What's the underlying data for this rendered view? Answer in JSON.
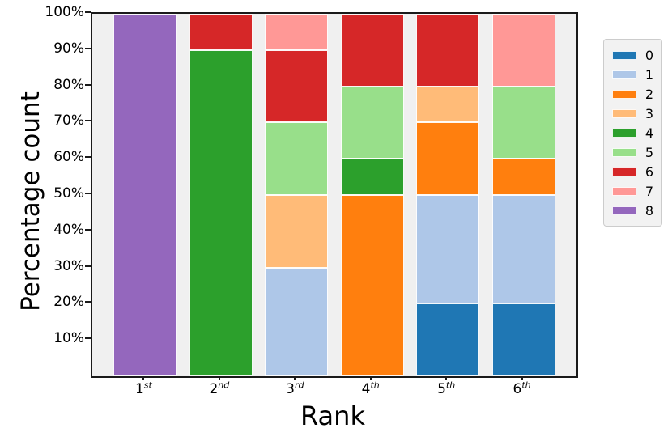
{
  "figure": {
    "background": "#ffffff",
    "plot_background": "#f0f0f0",
    "spine_color": "#1a1a1a"
  },
  "chart_data": {
    "type": "bar",
    "stacked": true,
    "normalized": "percent",
    "orientation": "vertical",
    "title": "",
    "xlabel": "Rank",
    "ylabel": "Percentage count",
    "ylim": [
      0,
      100
    ],
    "yticks": [
      10,
      20,
      30,
      40,
      50,
      60,
      70,
      80,
      90,
      100
    ],
    "ytick_suffix": "%",
    "grid": false,
    "categories": [
      "1st",
      "2nd",
      "3rd",
      "4th",
      "5th",
      "6th"
    ],
    "categories_rich": [
      {
        "base": "1",
        "sup": "st"
      },
      {
        "base": "2",
        "sup": "nd"
      },
      {
        "base": "3",
        "sup": "rd"
      },
      {
        "base": "4",
        "sup": "th"
      },
      {
        "base": "5",
        "sup": "th"
      },
      {
        "base": "6",
        "sup": "th"
      }
    ],
    "legend": {
      "position": "right-outside",
      "labels": [
        "0",
        "1",
        "2",
        "3",
        "4",
        "5",
        "6",
        "7",
        "8"
      ]
    },
    "series": [
      {
        "name": "0",
        "color": "#1f77b4",
        "values": [
          0,
          0,
          0,
          0,
          20,
          20
        ]
      },
      {
        "name": "1",
        "color": "#aec7e8",
        "values": [
          0,
          0,
          30,
          0,
          30,
          30
        ]
      },
      {
        "name": "2",
        "color": "#ff7f0e",
        "values": [
          0,
          0,
          0,
          50,
          20,
          10
        ]
      },
      {
        "name": "3",
        "color": "#ffbb78",
        "values": [
          0,
          0,
          20,
          0,
          10,
          0
        ]
      },
      {
        "name": "4",
        "color": "#2ca02c",
        "values": [
          0,
          90,
          0,
          10,
          0,
          0
        ]
      },
      {
        "name": "5",
        "color": "#98df8a",
        "values": [
          0,
          0,
          20,
          20,
          0,
          20
        ]
      },
      {
        "name": "6",
        "color": "#d62728",
        "values": [
          0,
          10,
          20,
          20,
          20,
          0
        ]
      },
      {
        "name": "7",
        "color": "#ff9896",
        "values": [
          0,
          0,
          10,
          0,
          0,
          20
        ]
      },
      {
        "name": "8",
        "color": "#9467bd",
        "values": [
          100,
          0,
          0,
          0,
          0,
          0
        ]
      }
    ]
  }
}
